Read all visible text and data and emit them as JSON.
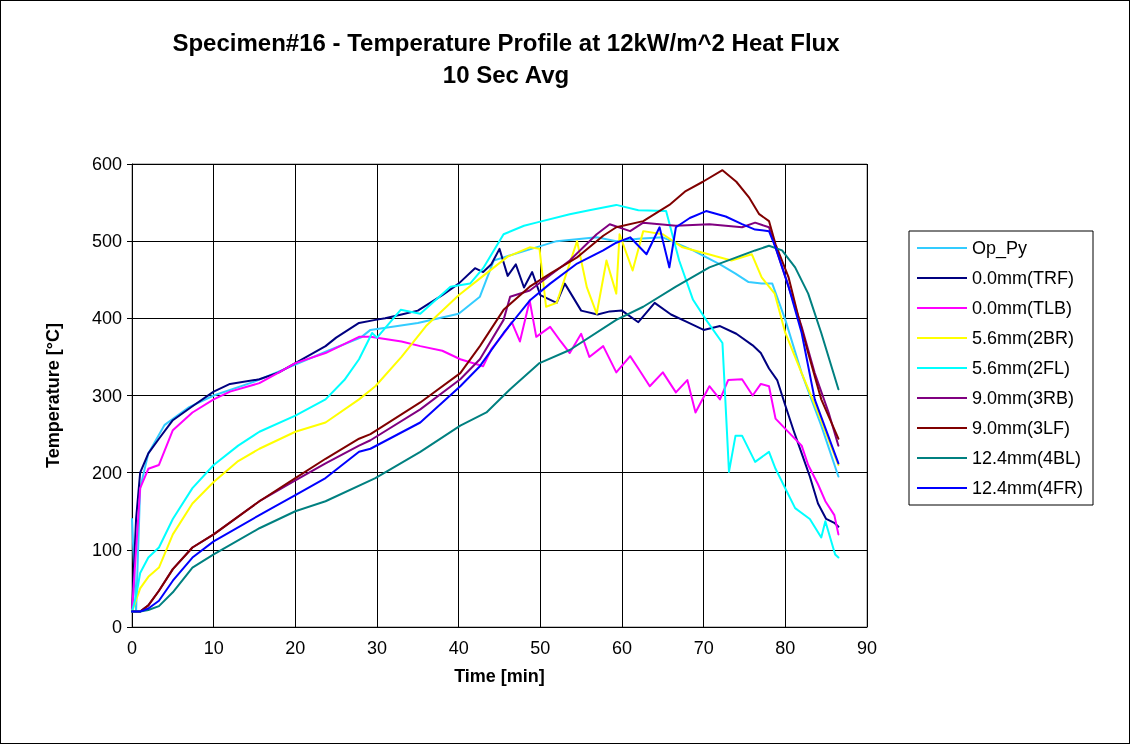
{
  "chart_data": {
    "type": "line",
    "title": "Specimen#16 - Temperature Profile at 12kW/m^2 Heat Flux",
    "subtitle": "10 Sec Avg",
    "xlabel": "Time [min]",
    "ylabel": "Temperature [°C]",
    "xlim": [
      0,
      90
    ],
    "xticks": [
      0,
      10,
      20,
      30,
      40,
      50,
      60,
      70,
      80,
      90
    ],
    "ylim": [
      0,
      600
    ],
    "yticks": [
      0,
      100,
      200,
      300,
      400,
      500,
      600
    ],
    "grid": true,
    "legend": "right",
    "marker": "none",
    "line_style": "solid",
    "series": [
      {
        "name": "Op_Py",
        "color": "#33ccff",
        "x": [
          0,
          0.5,
          1,
          2,
          4,
          7,
          10,
          15,
          20,
          24,
          28,
          29.2,
          35,
          40,
          42.6,
          44.3,
          45.5,
          49.5,
          52,
          56.9,
          59.3,
          62,
          65,
          68.7,
          72,
          73.9,
          75.5,
          77.1,
          78.4,
          80,
          82,
          84.4,
          86.5
        ],
        "values": [
          140,
          20,
          180,
          225,
          262,
          285,
          300,
          318,
          340,
          358,
          375,
          385,
          394,
          406,
          428,
          475,
          479,
          492,
          500,
          505,
          500,
          503,
          505,
          488,
          470,
          458,
          447,
          445,
          445,
          398,
          329,
          261,
          195
        ]
      },
      {
        "name": "0.0mm(TRF)",
        "color": "#000080",
        "x": [
          0,
          0.5,
          1,
          2,
          3.3,
          5,
          7.4,
          10,
          12,
          15.6,
          18,
          20,
          23.7,
          25,
          27.8,
          29.8,
          31,
          33,
          35,
          38,
          40,
          42,
          43,
          44,
          45,
          46,
          47,
          48,
          49,
          50,
          52,
          53,
          55,
          57,
          58.5,
          60,
          62,
          64,
          66,
          68,
          70,
          72,
          74,
          76,
          77,
          78,
          79,
          80,
          81,
          82,
          83,
          84,
          85,
          86,
          86.5
        ],
        "values": [
          20,
          140,
          200,
          225,
          244,
          268,
          286,
          305,
          315,
          321,
          330,
          342,
          364,
          375,
          394,
          398,
          400,
          405,
          410,
          430,
          445,
          465,
          460,
          470,
          490,
          455,
          470,
          440,
          460,
          430,
          420,
          445,
          410,
          405,
          409,
          410,
          395,
          420,
          405,
          395,
          385,
          390,
          380,
          365,
          355,
          335,
          320,
          287,
          255,
          225,
          195,
          160,
          140,
          135,
          130
        ]
      },
      {
        "name": "0.0mm(TLB)",
        "color": "#ff00ff",
        "x": [
          0,
          0.5,
          1,
          2,
          3.3,
          5,
          7.4,
          10,
          12,
          15.6,
          18,
          20,
          23.7,
          27.8,
          29.2,
          33,
          35.3,
          38,
          40.2,
          43,
          44,
          45.5,
          46.5,
          47.5,
          48.7,
          49.5,
          51.2,
          52.5,
          53.6,
          55,
          56,
          57.7,
          59.3,
          61,
          62,
          63.4,
          65,
          66.6,
          68,
          69,
          70.7,
          72,
          73,
          74.7,
          76,
          77,
          78,
          78.8,
          80.8,
          82,
          82.8,
          84,
          84.9,
          86,
          86.5
        ],
        "values": [
          20,
          100,
          180,
          205,
          210,
          255,
          278,
          295,
          305,
          316,
          330,
          342,
          355,
          376,
          376,
          370,
          364,
          358,
          347,
          338,
          360,
          380,
          395,
          370,
          423,
          376,
          389,
          370,
          355,
          380,
          350,
          364,
          330,
          351,
          335,
          312,
          330,
          304,
          320,
          278,
          312,
          295,
          320,
          321,
          300,
          315,
          312,
          270,
          248,
          235,
          210,
          185,
          163,
          145,
          120
        ]
      },
      {
        "name": "5.6mm(2BR)",
        "color": "#ffff00",
        "x": [
          0,
          1,
          2,
          3.3,
          5,
          7.4,
          10,
          13,
          15.6,
          20,
          23.7,
          27.8,
          29.8,
          33,
          36,
          40,
          43,
          46,
          48.7,
          49.9,
          50.7,
          52,
          54.5,
          55.7,
          56.9,
          58.1,
          59.3,
          59.7,
          61.3,
          62.6,
          65,
          67.4,
          70.6,
          73.4,
          75.9,
          77.1,
          78.7,
          80,
          82,
          84,
          86.5
        ],
        "values": [
          20,
          50,
          65,
          77,
          120,
          160,
          188,
          215,
          231,
          253,
          265,
          295,
          312,
          350,
          390,
          430,
          455,
          480,
          492,
          490,
          415,
          420,
          500,
          440,
          406,
          475,
          432,
          509,
          462,
          513,
          509,
          492,
          483,
          475,
          483,
          453,
          432,
          381,
          329,
          278,
          210
        ]
      },
      {
        "name": "5.6mm(2FL)",
        "color": "#00ffff",
        "x": [
          0,
          0.5,
          1,
          2,
          3.3,
          5,
          7.4,
          10,
          13,
          15.6,
          20,
          23.7,
          26,
          27.8,
          29.4,
          30,
          32.9,
          35.3,
          39,
          41.4,
          43,
          45.5,
          48,
          49.5,
          53.6,
          56,
          59.3,
          62,
          65.4,
          67,
          68.7,
          70.3,
          72.3,
          73.1,
          73.9,
          74.7,
          76.3,
          78,
          78.8,
          81.2,
          83,
          84.4,
          84.9,
          86.1,
          86.5
        ],
        "values": [
          20,
          40,
          70,
          90,
          103,
          140,
          180,
          210,
          235,
          253,
          274,
          295,
          320,
          347,
          381,
          375,
          411,
          406,
          441,
          445,
          465,
          509,
          520,
          524,
          535,
          540,
          547,
          540,
          539,
          475,
          424,
          398,
          368,
          201,
          248,
          248,
          214,
          227,
          205,
          154,
          140,
          116,
          137,
          94,
          90
        ]
      },
      {
        "name": "9.0mm(3RB)",
        "color": "#800080",
        "x": [
          0,
          1,
          2,
          3.3,
          5,
          7.4,
          10,
          15.6,
          20,
          23.7,
          27.8,
          29.2,
          35.3,
          40.2,
          42.6,
          45.5,
          46.3,
          48.7,
          53.6,
          56.9,
          58.5,
          61,
          62.6,
          66.6,
          70.7,
          74.7,
          76.3,
          78,
          78.8,
          80.4,
          82,
          83.6,
          85.3,
          86.5
        ],
        "values": [
          20,
          20,
          28,
          47,
          75,
          103,
          120,
          163,
          190,
          212,
          235,
          242,
          282,
          321,
          347,
          398,
          428,
          436,
          475,
          509,
          522,
          513,
          524,
          520,
          522,
          518,
          524,
          518,
          492,
          441,
          389,
          329,
          278,
          235
        ]
      },
      {
        "name": "9.0mm(3LF)",
        "color": "#800000",
        "x": [
          0,
          1,
          2,
          3.3,
          5,
          7.4,
          10,
          15.6,
          20,
          23.7,
          27.8,
          29.2,
          35.3,
          40.2,
          42.6,
          45.5,
          48.7,
          51.2,
          54.5,
          57.7,
          59.3,
          62.6,
          65.8,
          67.8,
          69.9,
          72.3,
          74,
          75.6,
          76.8,
          78,
          78.8,
          80.4,
          81.6,
          82.8,
          84.4,
          86.5
        ],
        "values": [
          20,
          20,
          28,
          47,
          75,
          103,
          120,
          163,
          193,
          218,
          244,
          250,
          291,
          329,
          364,
          411,
          441,
          458,
          479,
          507,
          518,
          526,
          547,
          565,
          577,
          592,
          577,
          556,
          535,
          526,
          496,
          453,
          402,
          355,
          295,
          244
        ]
      },
      {
        "name": "12.4mm(4BL)",
        "color": "#008080",
        "x": [
          0,
          1,
          2,
          3.3,
          5,
          7.4,
          10,
          15.6,
          20,
          23.7,
          29.8,
          35.3,
          40.2,
          43.4,
          46.3,
          49.9,
          53.6,
          59.3,
          62.6,
          66.6,
          70.7,
          74,
          76.3,
          78,
          79.6,
          81.2,
          82.8,
          84.4,
          86.5
        ],
        "values": [
          20,
          20,
          22,
          27,
          45,
          77,
          94,
          128,
          150,
          163,
          193,
          227,
          261,
          278,
          308,
          342,
          359,
          398,
          415,
          441,
          466,
          479,
          488,
          494,
          488,
          466,
          432,
          381,
          308
        ]
      },
      {
        "name": "12.4mm(4FR)",
        "color": "#0000ff",
        "x": [
          0,
          1,
          2,
          3.3,
          5,
          7.4,
          10,
          15.6,
          20,
          23.7,
          27.8,
          29.2,
          35.3,
          40.2,
          42.6,
          45.5,
          48.7,
          51.2,
          54.5,
          57.7,
          59.3,
          61,
          63,
          64.6,
          65.8,
          66.6,
          68.3,
          70.3,
          72.7,
          74.7,
          76.3,
          78,
          78.8,
          80.4,
          82,
          83.6,
          86.5
        ],
        "values": [
          20,
          20,
          24,
          34,
          60,
          90,
          111,
          145,
          171,
          193,
          227,
          231,
          265,
          312,
          338,
          381,
          423,
          445,
          471,
          488,
          498,
          505,
          483,
          518,
          466,
          518,
          530,
          539,
          532,
          522,
          515,
          513,
          492,
          441,
          381,
          295,
          212
        ]
      }
    ]
  }
}
